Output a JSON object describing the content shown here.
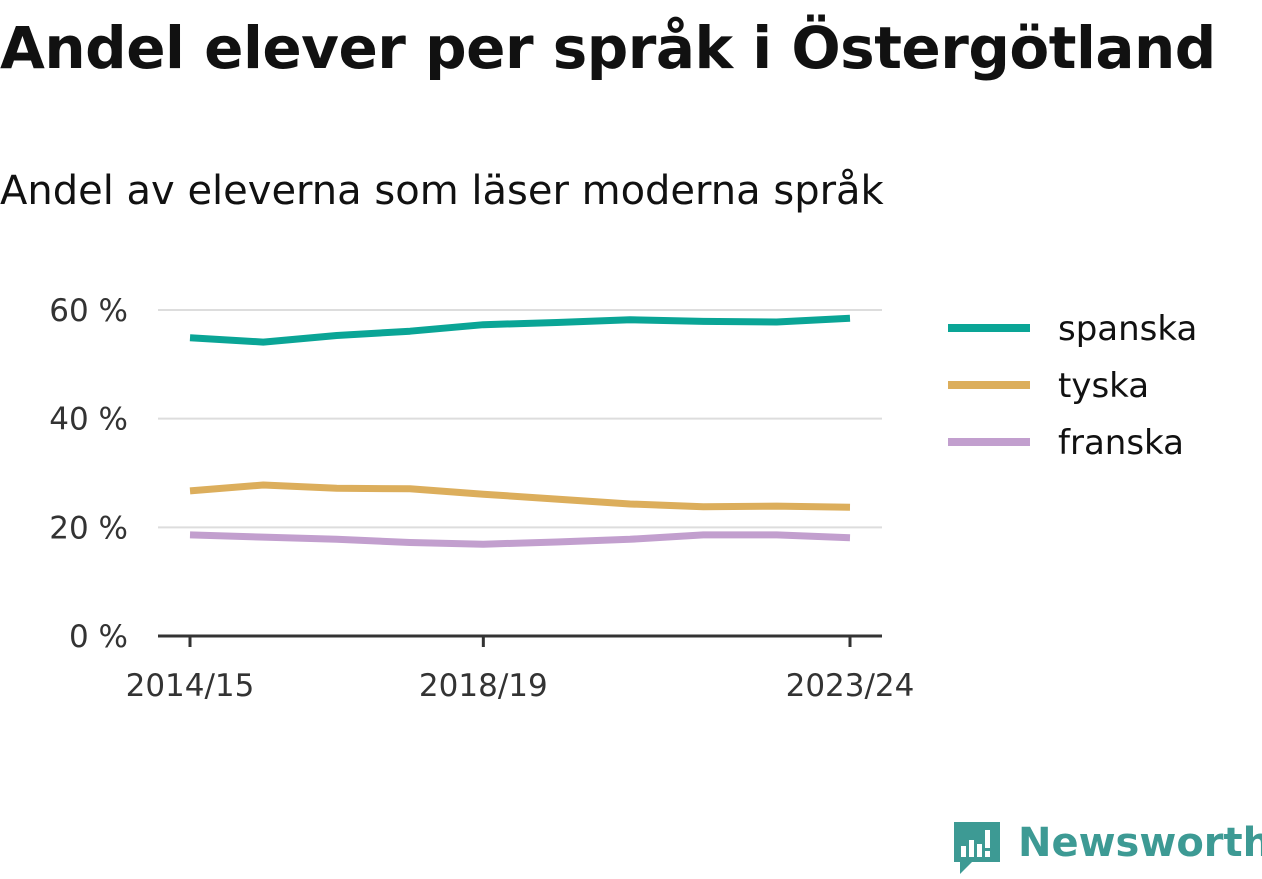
{
  "header": {
    "title": "Andel elever per språk i Östergötland",
    "subtitle": "Andel av eleverna som läser moderna språk"
  },
  "brand": {
    "name": "Newsworthy",
    "icon": "newsworthy-logo-icon",
    "color": "#3d9a94"
  },
  "chart_data": {
    "type": "line",
    "title": "Andel elever per språk i Östergötland",
    "subtitle": "Andel av eleverna som läser moderna språk",
    "xlabel": "",
    "ylabel": "",
    "x": [
      "2014/15",
      "2015/16",
      "2016/17",
      "2017/18",
      "2018/19",
      "2019/20",
      "2020/21",
      "2021/22",
      "2022/23",
      "2023/24"
    ],
    "x_tick_labels": [
      "2014/15",
      "2018/19",
      "2023/24"
    ],
    "x_tick_indices": [
      0,
      4,
      9
    ],
    "y_ticks": [
      0,
      20,
      40,
      60
    ],
    "y_tick_labels": [
      "0 %",
      "20 %",
      "40 %",
      "60 %"
    ],
    "ylim": [
      0,
      60
    ],
    "grid": true,
    "legend_position": "right",
    "series": [
      {
        "name": "spanska",
        "color": "#0aa596",
        "values": [
          54.9,
          54.1,
          55.3,
          56.1,
          57.3,
          57.7,
          58.2,
          57.9,
          57.8,
          58.5
        ]
      },
      {
        "name": "tyska",
        "color": "#dcae5c",
        "values": [
          26.7,
          27.8,
          27.2,
          27.1,
          26.1,
          25.2,
          24.3,
          23.8,
          23.9,
          23.7
        ]
      },
      {
        "name": "franska",
        "color": "#c29fce",
        "values": [
          18.6,
          18.2,
          17.8,
          17.2,
          16.9,
          17.3,
          17.8,
          18.6,
          18.6,
          18.1
        ]
      }
    ]
  }
}
